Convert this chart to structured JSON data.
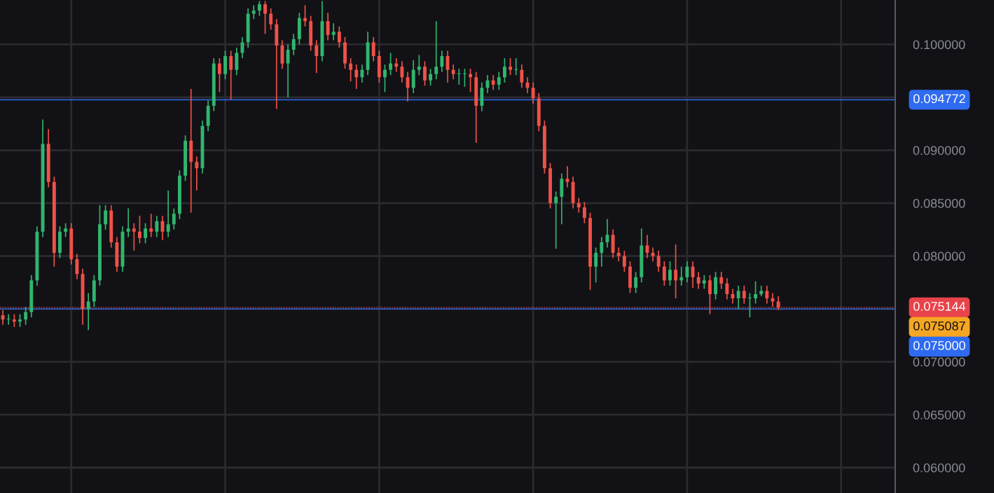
{
  "chart_data": {
    "type": "candlestick",
    "colors": [
      "#ef5148",
      "#31b56f",
      "#ef5148",
      "#31b56f",
      "#31b56f",
      "#31b56f",
      "#31b56f",
      "#31b56f",
      "#ef5148",
      "#ef5148",
      "#31b56f",
      "#31b56f",
      "#ef5148",
      "#ef5148",
      "#ef5148",
      "#31b56f",
      "#31b56f",
      "#31b56f",
      "#31b56f",
      "#ef5148",
      "#ef5148",
      "#31b56f",
      "#31b56f",
      "#ef5148",
      "#ef5148",
      "#31b56f",
      "#ef5148",
      "#31b56f",
      "#ef5148",
      "#31b56f",
      "#31b56f",
      "#31b56f",
      "#31b56f",
      "#ef5148",
      "#ef5148",
      "#31b56f",
      "#31b56f",
      "#31b56f",
      "#ef5148",
      "#31b56f",
      "#ef5148",
      "#31b56f",
      "#31b56f",
      "#31b56f",
      "#31b56f",
      "#31b56f",
      "#ef5148",
      "#ef5148",
      "#ef5148",
      "#ef5148",
      "#31b56f",
      "#31b56f",
      "#31b56f",
      "#ef5148",
      "#ef5148",
      "#ef5148",
      "#31b56f",
      "#ef5148",
      "#31b56f",
      "#ef5148",
      "#ef5148",
      "#ef5148",
      "#ef5148",
      "#31b56f",
      "#31b56f",
      "#ef5148",
      "#ef5148",
      "#31b56f",
      "#31b56f",
      "#ef5148",
      "#ef5148",
      "#ef5148",
      "#31b56f",
      "#31b56f",
      "#ef5148",
      "#31b56f",
      "#31b56f",
      "#31b56f",
      "#ef5148",
      "#ef5148",
      "#31b56f",
      "#31b56f",
      "#ef5148",
      "#ef5148",
      "#31b56f",
      "#31b56f",
      "#ef5148",
      "#31b56f",
      "#31b56f",
      "#ef5148",
      "#31b56f",
      "#ef5148",
      "#ef5148",
      "#ef5148",
      "#ef5148",
      "#ef5148",
      "#ef5148",
      "#31b56f",
      "#31b56f",
      "#ef5148",
      "#ef5148",
      "#ef5148",
      "#ef5148",
      "#ef5148",
      "#31b56f",
      "#31b56f",
      "#31b56f",
      "#ef5148",
      "#ef5148",
      "#ef5148",
      "#ef5148",
      "#31b56f",
      "#31b56f",
      "#ef5148",
      "#ef5148",
      "#ef5148",
      "#ef5148",
      "#31b56f",
      "#ef5148",
      "#31b56f",
      "#31b56f",
      "#ef5148",
      "#ef5148",
      "#31b56f",
      "#ef5148",
      "#31b56f",
      "#ef5148",
      "#ef5148",
      "#ef5148",
      "#31b56f",
      "#ef5148",
      "#31b56f",
      "#31b56f",
      "#31b56f",
      "#ef5148",
      "#ef5148",
      "#ef5148",
      null,
      null,
      null,
      null,
      null,
      null,
      null,
      null,
      null,
      null,
      null,
      null,
      null,
      null,
      null,
      null,
      null,
      null,
      null,
      null
    ],
    "ylim": [
      0.0576,
      0.1042
    ],
    "yticks": [
      {
        "value": 0.06,
        "label": "0.060000"
      },
      {
        "value": 0.065,
        "label": "0.065000"
      },
      {
        "value": 0.07,
        "label": "0.070000"
      },
      {
        "value": 0.075,
        "label": null
      },
      {
        "value": 0.08,
        "label": "0.080000"
      },
      {
        "value": 0.085,
        "label": "0.085000"
      },
      {
        "value": 0.09,
        "label": "0.090000"
      },
      {
        "value": 0.095,
        "label": null
      },
      {
        "value": 0.1,
        "label": "0.100000"
      }
    ],
    "grid": true,
    "annotations": [
      "0.075087"
    ],
    "ref_lines": [
      {
        "axis": "y",
        "value": 0.094772,
        "label": "0.094772",
        "color": "#2f6bf0",
        "line_style": "solid"
      },
      {
        "axis": "y",
        "value": 0.075144,
        "label": "0.075144",
        "color": "#e8434a",
        "line_style": "dotted"
      },
      {
        "axis": "y",
        "value": 0.075,
        "label": "0.075000",
        "color": "#2f6bf0",
        "line_style": "solid"
      }
    ],
    "categories": [
      null,
      null,
      null,
      null,
      null,
      null,
      null,
      null,
      null,
      null,
      null,
      null,
      null,
      null,
      null,
      null,
      null,
      null,
      null,
      null,
      null,
      null,
      null,
      null,
      null,
      null,
      null,
      null,
      null,
      null,
      null,
      null,
      null,
      null,
      null,
      null,
      null,
      null,
      null,
      null,
      null,
      null,
      null,
      null,
      null,
      null,
      null,
      null,
      null,
      null,
      null,
      null,
      null,
      null,
      null,
      null,
      null,
      null,
      null,
      null,
      null,
      null,
      null,
      null,
      null,
      null,
      null,
      null,
      null,
      null,
      null,
      null,
      null,
      null,
      null,
      null,
      null,
      null,
      null,
      null,
      null,
      null,
      null,
      null,
      null,
      null,
      null,
      null,
      null,
      null,
      null,
      null,
      null,
      null,
      null,
      null,
      null,
      null,
      null,
      null,
      null,
      null,
      null,
      null,
      null,
      null,
      null,
      null,
      null,
      null,
      null,
      null,
      null,
      null,
      null,
      null,
      null,
      null,
      null,
      null,
      null,
      null,
      null,
      null,
      null,
      null,
      null,
      null,
      null,
      null,
      null,
      null,
      null,
      null,
      null,
      null,
      null,
      null,
      null,
      null,
      null,
      null,
      null,
      null,
      null,
      null,
      null,
      null,
      null,
      null,
      null,
      null,
      null,
      null,
      null,
      null,
      null
    ],
    "ohlc": [
      [
        0.0744,
        0.0749,
        0.0735,
        0.074
      ],
      [
        0.074,
        0.0745,
        0.0735,
        0.074
      ],
      [
        0.074,
        0.0745,
        0.0733,
        0.0738
      ],
      [
        0.0738,
        0.0745,
        0.0733,
        0.074
      ],
      [
        0.074,
        0.0752,
        0.0735,
        0.0747
      ],
      [
        0.0747,
        0.0782,
        0.0742,
        0.0777
      ],
      [
        0.0777,
        0.0828,
        0.0772,
        0.0823
      ],
      [
        0.0823,
        0.0929,
        0.0818,
        0.0906
      ],
      [
        0.0906,
        0.092,
        0.0865,
        0.087
      ],
      [
        0.087,
        0.0875,
        0.079,
        0.0803
      ],
      [
        0.0803,
        0.0828,
        0.0798,
        0.0823
      ],
      [
        0.0823,
        0.0831,
        0.0818,
        0.0826
      ],
      [
        0.0826,
        0.0831,
        0.0792,
        0.0797
      ],
      [
        0.0797,
        0.0802,
        0.0778,
        0.0783
      ],
      [
        0.0783,
        0.0788,
        0.0735,
        0.075
      ],
      [
        0.075,
        0.0765,
        0.073,
        0.0757
      ],
      [
        0.0757,
        0.0782,
        0.0752,
        0.0777
      ],
      [
        0.0777,
        0.0848,
        0.0772,
        0.083
      ],
      [
        0.083,
        0.0848,
        0.0825,
        0.0843
      ],
      [
        0.0843,
        0.0848,
        0.0808,
        0.0813
      ],
      [
        0.0813,
        0.0818,
        0.0785,
        0.079
      ],
      [
        0.079,
        0.0828,
        0.0785,
        0.0823
      ],
      [
        0.0823,
        0.0845,
        0.0818,
        0.0826
      ],
      [
        0.0826,
        0.0831,
        0.0805,
        0.0823
      ],
      [
        0.0823,
        0.0838,
        0.0812,
        0.0817
      ],
      [
        0.0817,
        0.0831,
        0.0812,
        0.0826
      ],
      [
        0.0826,
        0.084,
        0.0818,
        0.0823
      ],
      [
        0.0823,
        0.0838,
        0.0818,
        0.0833
      ],
      [
        0.0833,
        0.0838,
        0.0815,
        0.0823
      ],
      [
        0.0823,
        0.0862,
        0.0818,
        0.083
      ],
      [
        0.083,
        0.0845,
        0.0825,
        0.084
      ],
      [
        0.084,
        0.0881,
        0.0835,
        0.0876
      ],
      [
        0.0876,
        0.0914,
        0.0871,
        0.0909
      ],
      [
        0.0909,
        0.0958,
        0.0841,
        0.0889
      ],
      [
        0.0889,
        0.0894,
        0.0862,
        0.0883
      ],
      [
        0.0883,
        0.0928,
        0.0878,
        0.0923
      ],
      [
        0.0923,
        0.0947,
        0.0918,
        0.0942
      ],
      [
        0.0942,
        0.0987,
        0.0937,
        0.0982
      ],
      [
        0.0982,
        0.0987,
        0.0955,
        0.0972
      ],
      [
        0.0972,
        0.0994,
        0.0967,
        0.0989
      ],
      [
        0.0989,
        0.0994,
        0.0948,
        0.0976
      ],
      [
        0.0976,
        0.0997,
        0.0971,
        0.0992
      ],
      [
        0.0992,
        0.1007,
        0.0987,
        0.1002
      ],
      [
        0.1002,
        0.1034,
        0.0997,
        0.1029
      ],
      [
        0.1029,
        0.1037,
        0.1024,
        0.1032
      ],
      [
        0.1032,
        0.1041,
        0.1027,
        0.1038
      ],
      [
        0.1038,
        0.1041,
        0.101,
        0.1029
      ],
      [
        0.1029,
        0.1034,
        0.1014,
        0.1019
      ],
      [
        0.1019,
        0.1024,
        0.0939,
        0.0999
      ],
      [
        0.0999,
        0.1004,
        0.0977,
        0.0982
      ],
      [
        0.0982,
        0.1,
        0.095,
        0.0995
      ],
      [
        0.0995,
        0.101,
        0.099,
        0.1005
      ],
      [
        0.1005,
        0.103,
        0.1,
        0.1025
      ],
      [
        0.1025,
        0.1037,
        0.1017,
        0.1022
      ],
      [
        0.1022,
        0.1027,
        0.0994,
        0.0999
      ],
      [
        0.0999,
        0.1004,
        0.0973,
        0.0989
      ],
      [
        0.0989,
        0.1041,
        0.0984,
        0.1022
      ],
      [
        0.1022,
        0.103,
        0.1004,
        0.1009
      ],
      [
        0.1009,
        0.102,
        0.1004,
        0.1012
      ],
      [
        0.1012,
        0.1017,
        0.0997,
        0.1002
      ],
      [
        0.1002,
        0.1007,
        0.0977,
        0.0982
      ],
      [
        0.0982,
        0.0987,
        0.0965,
        0.0976
      ],
      [
        0.0976,
        0.0981,
        0.0958,
        0.0969
      ],
      [
        0.0969,
        0.0981,
        0.0964,
        0.0976
      ],
      [
        0.0976,
        0.1012,
        0.0971,
        0.1002
      ],
      [
        0.1002,
        0.1007,
        0.0984,
        0.0989
      ],
      [
        0.0989,
        0.0994,
        0.0964,
        0.0969
      ],
      [
        0.0969,
        0.0981,
        0.0955,
        0.0976
      ],
      [
        0.0976,
        0.0992,
        0.0971,
        0.0982
      ],
      [
        0.0982,
        0.0987,
        0.0974,
        0.0979
      ],
      [
        0.0979,
        0.0984,
        0.0964,
        0.0969
      ],
      [
        0.0969,
        0.0974,
        0.0946,
        0.0959
      ],
      [
        0.0959,
        0.0985,
        0.0954,
        0.0976
      ],
      [
        0.0976,
        0.099,
        0.0971,
        0.0979
      ],
      [
        0.0979,
        0.0984,
        0.0961,
        0.0966
      ],
      [
        0.0966,
        0.0977,
        0.0961,
        0.0972
      ],
      [
        0.0972,
        0.1022,
        0.0967,
        0.0979
      ],
      [
        0.0979,
        0.0994,
        0.0974,
        0.0989
      ],
      [
        0.0989,
        0.0994,
        0.0964,
        0.0976
      ],
      [
        0.0976,
        0.0981,
        0.0967,
        0.0972
      ],
      [
        0.0972,
        0.0977,
        0.0962,
        0.0972
      ],
      [
        0.0972,
        0.0977,
        0.096,
        0.0972
      ],
      [
        0.0972,
        0.0977,
        0.0955,
        0.0969
      ],
      [
        0.0969,
        0.0974,
        0.0907,
        0.0942
      ],
      [
        0.0942,
        0.0964,
        0.0937,
        0.0959
      ],
      [
        0.0959,
        0.0971,
        0.0954,
        0.0966
      ],
      [
        0.0966,
        0.0971,
        0.0957,
        0.0962
      ],
      [
        0.0962,
        0.0974,
        0.0957,
        0.0969
      ],
      [
        0.0969,
        0.0987,
        0.0964,
        0.0979
      ],
      [
        0.0979,
        0.0987,
        0.0971,
        0.0976
      ],
      [
        0.0976,
        0.0987,
        0.0971,
        0.0976
      ],
      [
        0.0976,
        0.0981,
        0.0959,
        0.0964
      ],
      [
        0.0964,
        0.0969,
        0.0954,
        0.0959
      ],
      [
        0.0959,
        0.0964,
        0.0944,
        0.0949
      ],
      [
        0.0949,
        0.0954,
        0.0918,
        0.0923
      ],
      [
        0.0923,
        0.0928,
        0.0878,
        0.0883
      ],
      [
        0.0883,
        0.0888,
        0.0845,
        0.085
      ],
      [
        0.085,
        0.0861,
        0.0807,
        0.0856
      ],
      [
        0.0856,
        0.0878,
        0.083,
        0.0873
      ],
      [
        0.0873,
        0.0885,
        0.0865,
        0.087
      ],
      [
        0.087,
        0.0875,
        0.0845,
        0.085
      ],
      [
        0.085,
        0.0855,
        0.0841,
        0.0846
      ],
      [
        0.0846,
        0.0851,
        0.0831,
        0.0836
      ],
      [
        0.0836,
        0.0841,
        0.0768,
        0.079
      ],
      [
        0.079,
        0.0808,
        0.0775,
        0.0803
      ],
      [
        0.0803,
        0.0818,
        0.079,
        0.0813
      ],
      [
        0.0813,
        0.0835,
        0.0808,
        0.082
      ],
      [
        0.082,
        0.0825,
        0.0798,
        0.0803
      ],
      [
        0.0803,
        0.0808,
        0.0795,
        0.08
      ],
      [
        0.08,
        0.0805,
        0.0785,
        0.079
      ],
      [
        0.079,
        0.0795,
        0.0765,
        0.077
      ],
      [
        0.077,
        0.0785,
        0.0765,
        0.078
      ],
      [
        0.078,
        0.0826,
        0.0775,
        0.081
      ],
      [
        0.081,
        0.082,
        0.0798,
        0.0803
      ],
      [
        0.0803,
        0.0808,
        0.0795,
        0.08
      ],
      [
        0.08,
        0.0805,
        0.0785,
        0.079
      ],
      [
        0.079,
        0.0795,
        0.0772,
        0.0777
      ],
      [
        0.0777,
        0.0795,
        0.0772,
        0.0787
      ],
      [
        0.0787,
        0.0811,
        0.076,
        0.0777
      ],
      [
        0.0777,
        0.079,
        0.0772,
        0.078
      ],
      [
        0.078,
        0.0795,
        0.0775,
        0.079
      ],
      [
        0.079,
        0.0795,
        0.077,
        0.078
      ],
      [
        0.078,
        0.0785,
        0.0769,
        0.0774
      ],
      [
        0.0774,
        0.0782,
        0.0769,
        0.0777
      ],
      [
        0.0777,
        0.0782,
        0.0745,
        0.0764
      ],
      [
        0.0764,
        0.0785,
        0.0759,
        0.078
      ],
      [
        0.078,
        0.0785,
        0.0769,
        0.0774
      ],
      [
        0.0774,
        0.0779,
        0.0759,
        0.0764
      ],
      [
        0.0764,
        0.0769,
        0.0755,
        0.076
      ],
      [
        0.076,
        0.0772,
        0.075,
        0.0767
      ],
      [
        0.0767,
        0.0772,
        0.0755,
        0.076
      ],
      [
        0.076,
        0.0765,
        0.0742,
        0.076
      ],
      [
        0.076,
        0.0776,
        0.0755,
        0.0764
      ],
      [
        0.0764,
        0.0772,
        0.0762,
        0.0767
      ],
      [
        0.0767,
        0.0772,
        0.0755,
        0.076
      ],
      [
        0.076,
        0.0765,
        0.0752,
        0.0757
      ],
      [
        0.0757,
        0.0762,
        0.0749,
        0.07514
      ],
      null,
      null,
      null,
      null,
      null,
      null,
      null,
      null,
      null,
      null,
      null,
      null,
      null,
      null,
      null,
      null,
      null,
      null,
      null,
      null
    ]
  }
}
